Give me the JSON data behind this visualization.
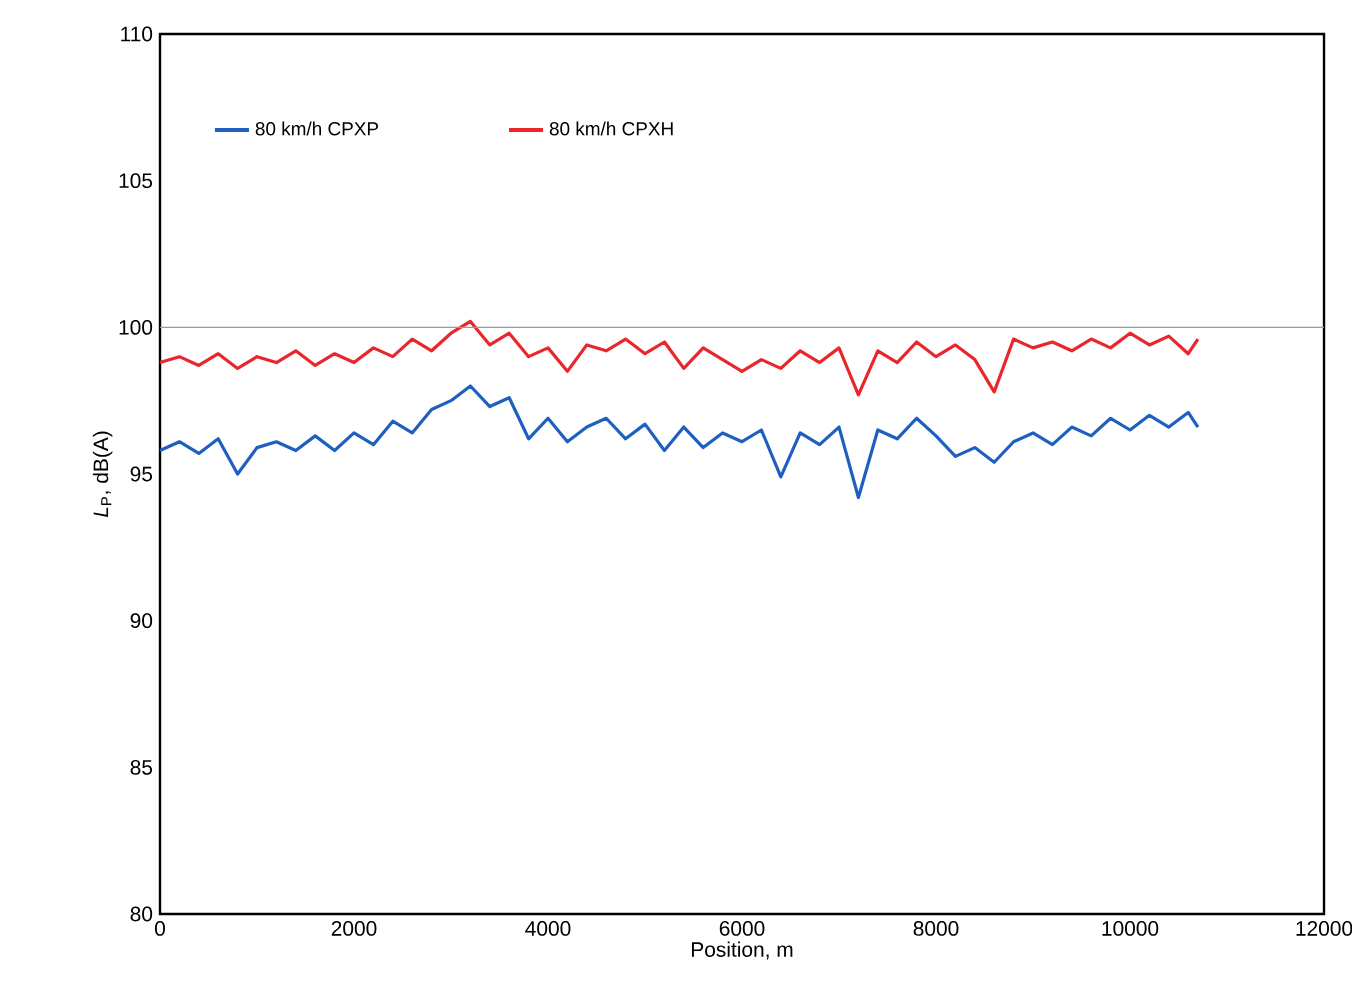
{
  "chart_data": {
    "type": "line",
    "xlabel": "Position, m",
    "ylabel": "*L*$_{P}$, dB(A)",
    "x": [
      0,
      200,
      400,
      600,
      800,
      1000,
      1200,
      1400,
      1600,
      1800,
      2000,
      2200,
      2400,
      2600,
      2800,
      3000,
      3200,
      3400,
      3600,
      3800,
      4000,
      4200,
      4400,
      4600,
      4800,
      5000,
      5200,
      5400,
      5600,
      5800,
      6000,
      6200,
      6400,
      6600,
      6800,
      7000,
      7200,
      7400,
      7600,
      7800,
      8000,
      8200,
      8400,
      8600,
      8800,
      9000,
      9200,
      9400,
      9600,
      9800,
      10000,
      10200,
      10400,
      10600,
      10700
    ],
    "series": [
      {
        "name": "80 km/h CPXP",
        "color": "#1f5fbf",
        "values": [
          95.8,
          96.1,
          95.7,
          96.2,
          95.0,
          95.9,
          96.1,
          95.8,
          96.3,
          95.8,
          96.4,
          96.0,
          96.8,
          96.4,
          97.2,
          97.5,
          98.0,
          97.3,
          97.6,
          96.2,
          96.9,
          96.1,
          96.6,
          96.9,
          96.2,
          96.7,
          95.8,
          96.6,
          95.9,
          96.4,
          96.1,
          96.5,
          94.9,
          96.4,
          96.0,
          96.6,
          94.2,
          96.5,
          96.2,
          96.9,
          96.3,
          95.6,
          95.9,
          95.4,
          96.1,
          96.4,
          96.0,
          96.6,
          96.3,
          96.9,
          96.5,
          97.0,
          96.6,
          97.1,
          96.6
        ]
      },
      {
        "name": "80 km/h CPXH",
        "color": "#e8262b",
        "values": [
          98.8,
          99.0,
          98.7,
          99.1,
          98.6,
          99.0,
          98.8,
          99.2,
          98.7,
          99.1,
          98.8,
          99.3,
          99.0,
          99.6,
          99.2,
          99.8,
          100.2,
          99.4,
          99.8,
          99.0,
          99.3,
          98.5,
          99.4,
          99.2,
          99.6,
          99.1,
          99.5,
          98.6,
          99.3,
          98.9,
          98.5,
          98.9,
          98.6,
          99.2,
          98.8,
          99.3,
          97.7,
          99.2,
          98.8,
          99.5,
          99.0,
          99.4,
          98.9,
          97.8,
          99.6,
          99.3,
          99.5,
          99.2,
          99.6,
          99.3,
          99.8,
          99.4,
          99.7,
          99.1,
          99.6
        ]
      }
    ],
    "xlim": [
      0,
      12000
    ],
    "xticks": [
      0,
      2000,
      4000,
      6000,
      8000,
      10000,
      12000
    ],
    "ylim": [
      80,
      110
    ],
    "yticks": [
      80,
      85,
      90,
      95,
      100,
      105,
      110
    ],
    "ref_lines": [
      {
        "axis": "y",
        "value": 100,
        "color": "#9a9a9a"
      }
    ],
    "legend": "top left",
    "grid": false,
    "marker": "none",
    "line_style": "solid"
  }
}
